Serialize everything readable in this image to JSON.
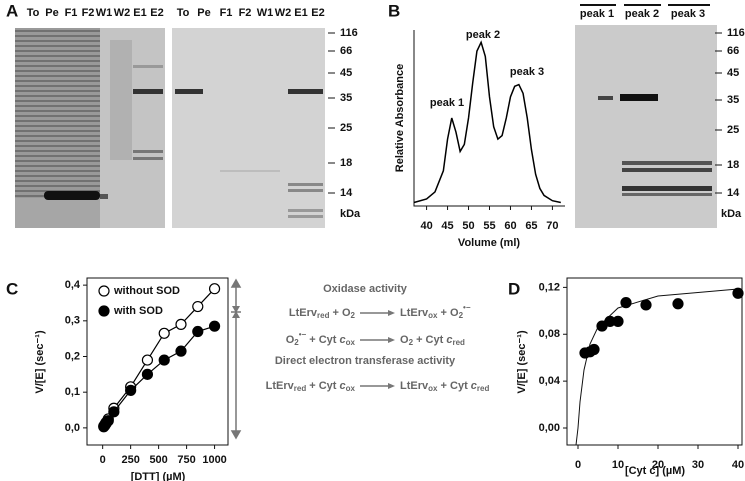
{
  "panel_labels": [
    "A",
    "B",
    "C",
    "D"
  ],
  "gel_a": {
    "lanes_left": [
      "To",
      "Pe",
      "F1",
      "F2",
      "W1",
      "W2",
      "E1",
      "E2"
    ],
    "lanes_right": [
      "To",
      "Pe",
      "F1",
      "F2",
      "W1",
      "W2",
      "E1",
      "E2"
    ]
  },
  "gel_b": {
    "lanes": [
      "peak 1",
      "peak 2",
      "peak 3"
    ]
  },
  "markers_a": {
    "sizes": [
      116,
      66,
      45,
      35,
      25,
      18,
      14
    ],
    "unit": "kDa"
  },
  "markers_b": {
    "sizes": [
      116,
      66,
      45,
      35,
      25,
      18,
      14
    ],
    "unit": "kDa"
  },
  "scheme": {
    "oxidase_title": "Oxidase activity",
    "oxidase_equations": [
      {
        "left": [
          {
            "text": "LtErv"
          },
          {
            "text": "red",
            "style": "sub"
          },
          {
            "text": " + O"
          },
          {
            "text": "2",
            "style": "sub"
          }
        ],
        "right": [
          {
            "text": "LtErv"
          },
          {
            "text": "ox",
            "style": "sub"
          },
          {
            "text": " + O"
          },
          {
            "text": "2",
            "style": "sub"
          },
          {
            "text": "•−",
            "style": "sup"
          }
        ]
      },
      {
        "left": [
          {
            "text": "O"
          },
          {
            "text": "2",
            "style": "sub"
          },
          {
            "text": "•−",
            "style": "sup"
          },
          {
            "text": " + Cyt "
          },
          {
            "text": "c",
            "style": "italic"
          },
          {
            "text": "ox",
            "style": "sub"
          }
        ],
        "right": [
          {
            "text": "O"
          },
          {
            "text": "2",
            "style": "sub"
          },
          {
            "text": " + Cyt "
          },
          {
            "text": "c",
            "style": "italic"
          },
          {
            "text": "red",
            "style": "sub"
          }
        ]
      }
    ],
    "transferase_title": "Direct electron transferase activity",
    "transferase_equations": [
      {
        "left": [
          {
            "text": "LtErv"
          },
          {
            "text": "red",
            "style": "sub"
          },
          {
            "text": " + Cyt "
          },
          {
            "text": "c",
            "style": "italic"
          },
          {
            "text": "ox",
            "style": "sub"
          }
        ],
        "right": [
          {
            "text": "LtErv"
          },
          {
            "text": "ox",
            "style": "sub"
          },
          {
            "text": " + Cyt "
          },
          {
            "text": "c",
            "style": "italic"
          },
          {
            "text": "red",
            "style": "sub"
          }
        ]
      }
    ]
  },
  "chart_data": [
    {
      "type": "line",
      "x_label": "Volume (ml)",
      "y_label": "Relative Absorbance",
      "color": "#000000",
      "x": [
        37,
        40,
        42,
        44,
        45,
        46,
        47,
        48,
        49,
        50,
        51,
        52,
        53,
        54,
        55,
        56,
        57,
        58,
        59,
        60,
        61,
        62,
        63,
        64,
        65,
        66,
        67,
        68,
        70,
        72
      ],
      "y": [
        0.02,
        0.04,
        0.08,
        0.2,
        0.38,
        0.5,
        0.42,
        0.31,
        0.35,
        0.5,
        0.7,
        0.88,
        0.93,
        0.85,
        0.62,
        0.45,
        0.38,
        0.4,
        0.5,
        0.62,
        0.68,
        0.69,
        0.64,
        0.5,
        0.32,
        0.18,
        0.1,
        0.06,
        0.03,
        0.02
      ],
      "xlim": [
        37,
        73
      ],
      "ylim": [
        0,
        1
      ],
      "xticks": [
        40,
        45,
        50,
        55,
        60,
        65,
        70
      ],
      "annotations": [
        "peak 1",
        "peak 2",
        "peak 3"
      ]
    },
    {
      "type": "scatter",
      "x_label": "[DTT] (µM)",
      "y_label": "V/[E] (sec⁻¹)",
      "connect": true,
      "legend": "upper left",
      "x": [
        10,
        20,
        30,
        50,
        100,
        250,
        400,
        550,
        700,
        850,
        1000
      ],
      "series": [
        {
          "name": "without SOD",
          "color": "#000000",
          "filled": false,
          "values": [
            0.005,
            0.01,
            0.015,
            0.025,
            0.055,
            0.115,
            0.19,
            0.265,
            0.29,
            0.34,
            0.39
          ]
        },
        {
          "name": "with SOD",
          "color": "#000000",
          "filled": true,
          "values": [
            0.003,
            0.007,
            0.012,
            0.02,
            0.045,
            0.105,
            0.15,
            0.19,
            0.215,
            0.27,
            0.285
          ]
        }
      ],
      "xlim": [
        -140,
        1120
      ],
      "ylim": [
        -0.048,
        0.42
      ],
      "xticks": [
        0,
        250,
        500,
        750,
        1000
      ],
      "yticks": [
        {
          "value": 0,
          "label": "0,0"
        },
        {
          "value": 0.1,
          "label": "0,1"
        },
        {
          "value": 0.2,
          "label": "0,2"
        },
        {
          "value": 0.3,
          "label": "0,3"
        },
        {
          "value": 0.4,
          "label": "0,4"
        }
      ]
    },
    {
      "type": "scatter",
      "x_label": "[Cyt c] (µM)",
      "y_label": "V/[E] (sec⁻¹)",
      "connect": false,
      "x": [
        1.75,
        3,
        4,
        6,
        8,
        10,
        12,
        17,
        25,
        40
      ],
      "series": [
        {
          "color": "#000000",
          "filled": true,
          "values": [
            0.064,
            0.065,
            0.067,
            0.087,
            0.091,
            0.091,
            0.107,
            0.105,
            0.106,
            0.115
          ]
        }
      ],
      "xlim": [
        -2.75,
        41
      ],
      "ylim": [
        -0.0145,
        0.128
      ],
      "xticks": [
        0,
        10,
        20,
        30,
        40
      ],
      "yticks": [
        {
          "value": 0,
          "label": "0,00"
        },
        {
          "value": 0.04,
          "label": "0,04"
        },
        {
          "value": 0.08,
          "label": "0,08"
        },
        {
          "value": 0.12,
          "label": "0,12"
        }
      ]
    }
  ]
}
